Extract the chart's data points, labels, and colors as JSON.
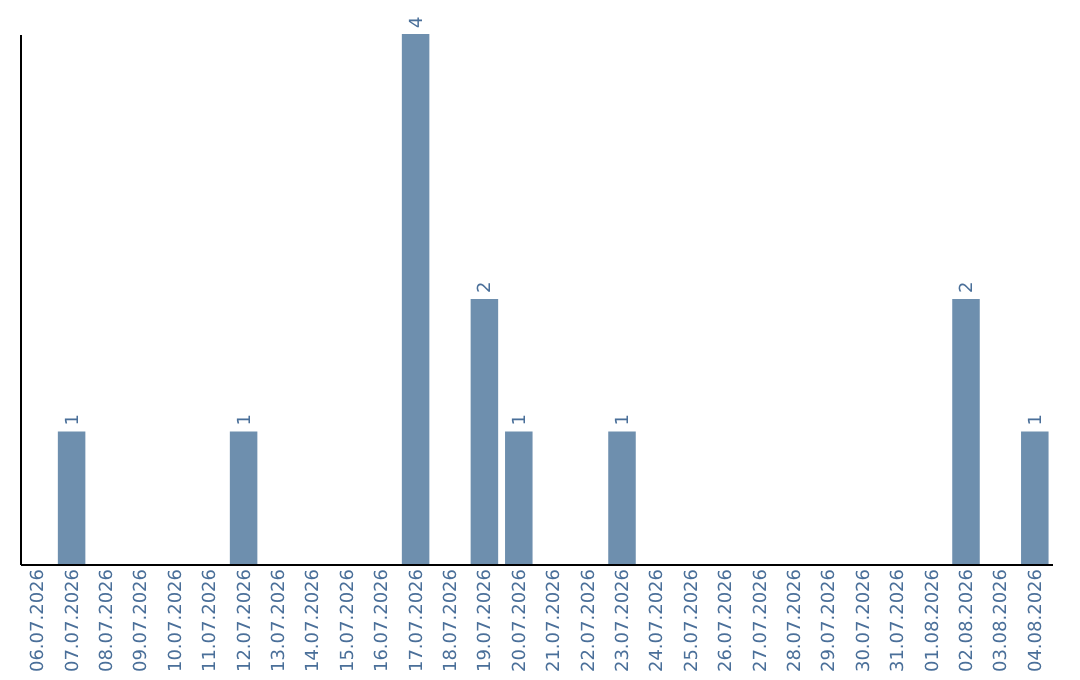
{
  "chart_data": {
    "type": "bar",
    "categories": [
      "06.07.2026",
      "07.07.2026",
      "08.07.2026",
      "09.07.2026",
      "10.07.2026",
      "11.07.2026",
      "12.07.2026",
      "13.07.2026",
      "14.07.2026",
      "15.07.2026",
      "16.07.2026",
      "17.07.2026",
      "18.07.2026",
      "19.07.2026",
      "20.07.2026",
      "21.07.2026",
      "22.07.2026",
      "23.07.2026",
      "24.07.2026",
      "25.07.2026",
      "26.07.2026",
      "27.07.2026",
      "28.07.2026",
      "29.07.2026",
      "30.07.2026",
      "31.07.2026",
      "01.08.2026",
      "02.08.2026",
      "03.08.2026",
      "04.08.2026"
    ],
    "values": [
      0,
      1,
      0,
      0,
      0,
      0,
      1,
      0,
      0,
      0,
      0,
      4,
      0,
      2,
      1,
      0,
      0,
      1,
      0,
      0,
      0,
      0,
      0,
      0,
      0,
      0,
      0,
      2,
      0,
      1
    ],
    "value_labels": [
      null,
      "1",
      null,
      null,
      null,
      null,
      "1",
      null,
      null,
      null,
      null,
      "4",
      null,
      "2",
      "1",
      null,
      null,
      "1",
      null,
      null,
      null,
      null,
      null,
      null,
      null,
      null,
      null,
      "2",
      null,
      "1"
    ],
    "color": "#6e8fae",
    "tick_labels": "x",
    "grid": false
  }
}
